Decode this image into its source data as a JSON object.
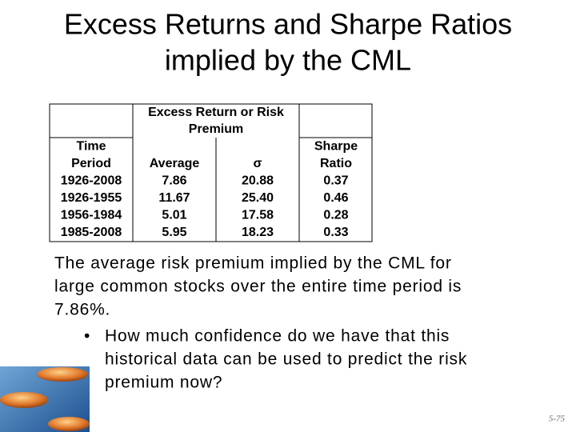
{
  "title": {
    "lines": [
      "Excess Returns and Sharpe Ratios",
      "implied by the CML"
    ]
  },
  "table": {
    "group_header": {
      "lines": [
        "Excess Return or Risk",
        "Premium"
      ]
    },
    "columns": [
      {
        "lines": [
          "Time",
          "Period"
        ]
      },
      {
        "lines": [
          "Average"
        ]
      },
      {
        "lines": [
          "σ"
        ]
      },
      {
        "lines": [
          "Sharpe",
          "Ratio"
        ]
      }
    ],
    "rows": [
      [
        "1926-2008",
        "7.86",
        "20.88",
        "0.37"
      ],
      [
        "1926-1955",
        "11.67",
        "25.40",
        "0.46"
      ],
      [
        "1956-1984",
        "5.01",
        "17.58",
        "0.28"
      ],
      [
        "1985-2008",
        "5.95",
        "18.23",
        "0.33"
      ]
    ]
  },
  "body": {
    "paragraph": {
      "lines": [
        "The average risk premium implied by the CML for",
        "large common stocks over the entire time period is",
        "7.86%."
      ]
    },
    "bullet": {
      "lines": [
        "How much confidence do we have that this",
        "historical data can be used to predict the risk",
        "premium now?"
      ]
    }
  },
  "footer": {
    "page": "5-75"
  }
}
